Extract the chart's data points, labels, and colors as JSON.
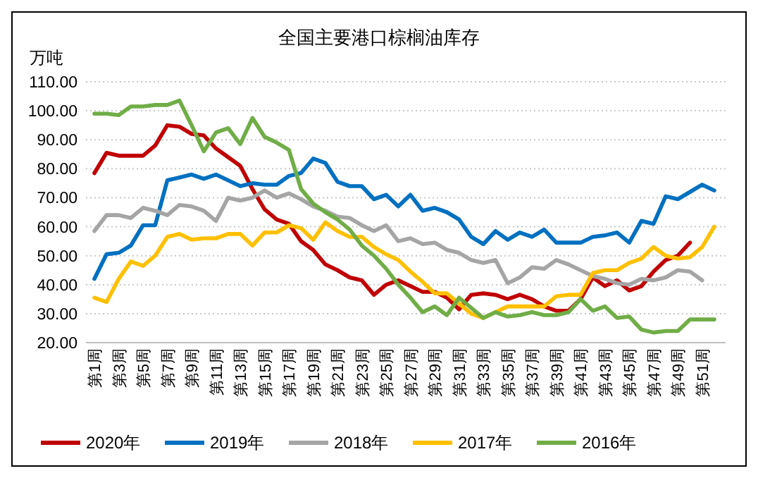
{
  "chart_data": {
    "type": "line",
    "title": "全国主要港口棕榈油库存",
    "ylabel": "万吨",
    "categories": [
      "第1周",
      null,
      "第3周",
      null,
      "第5周",
      null,
      "第7周",
      null,
      "第9周",
      null,
      "第11周",
      null,
      "第13周",
      null,
      "第15周",
      null,
      "第17周",
      null,
      "第19周",
      null,
      "第21周",
      null,
      "第23周",
      null,
      "第25周",
      null,
      "第27周",
      null,
      "第29周",
      null,
      "第31周",
      null,
      "第33周",
      null,
      "第35周",
      null,
      "第37周",
      null,
      "第39周",
      null,
      "第41周",
      null,
      "第43周",
      null,
      "第45周",
      null,
      "第47周",
      null,
      "第49周",
      null,
      "第51周",
      null
    ],
    "series": [
      {
        "name": "2020年",
        "color": "#c00000",
        "values": [
          78.5,
          85.5,
          84.5,
          84.5,
          84.5,
          88,
          95,
          94.5,
          92,
          91.5,
          87,
          84,
          81,
          73,
          66,
          62.5,
          61,
          55,
          52,
          47,
          45,
          42.5,
          41.5,
          36.5,
          40,
          41.5,
          39.5,
          37.5,
          37.5,
          35.5,
          31.5,
          36.5,
          37,
          36.5,
          35,
          36.5,
          35,
          32.5,
          31,
          31,
          35,
          42.5,
          39.5,
          41.5,
          38,
          39.5,
          44.5,
          48.5,
          50,
          54.5,
          null,
          null
        ]
      },
      {
        "name": "2019年",
        "color": "#0070c0",
        "values": [
          42,
          50.5,
          51,
          53.5,
          60.5,
          60.5,
          76,
          77,
          78,
          76.5,
          78,
          76,
          74,
          75,
          74.5,
          74.5,
          77.5,
          78.5,
          83.5,
          82,
          75.5,
          74,
          74,
          69.5,
          71,
          67,
          71,
          65.5,
          66.5,
          65,
          62.5,
          56.5,
          54,
          58.5,
          55.5,
          58,
          56.5,
          59,
          54.5,
          54.5,
          54.5,
          56.5,
          57,
          58,
          54.5,
          62,
          61,
          70.5,
          69.5,
          72,
          74.5,
          72.5
        ]
      },
      {
        "name": "2018年",
        "color": "#a5a5a5",
        "values": [
          58.5,
          64,
          64,
          63,
          66.5,
          65.5,
          64,
          67.5,
          67,
          65.5,
          62,
          70,
          69,
          70,
          72.5,
          70,
          71.5,
          69.5,
          67,
          65.5,
          63.5,
          63,
          60.5,
          58.5,
          60.5,
          55,
          56,
          54,
          54.5,
          52,
          51,
          48.5,
          47.5,
          48.5,
          40.5,
          42.5,
          46,
          45.5,
          48.5,
          47,
          45,
          43,
          42,
          40.5,
          40,
          42,
          41.5,
          42.5,
          45,
          44.5,
          41.5,
          null
        ]
      },
      {
        "name": "2017年",
        "color": "#ffc000",
        "values": [
          35.5,
          34,
          42,
          48,
          46.5,
          50,
          56.5,
          57.5,
          55.5,
          56,
          56,
          57.5,
          57.5,
          53.5,
          58,
          58,
          60.5,
          59.5,
          55.5,
          61.5,
          58.5,
          56.5,
          56.5,
          53,
          50.5,
          48.5,
          44.5,
          41,
          37,
          37,
          33.5,
          30,
          28.5,
          30.5,
          32.5,
          32.5,
          32.5,
          32.5,
          36,
          36.5,
          36.5,
          44,
          45,
          45,
          47.5,
          49,
          53,
          50,
          49,
          49.5,
          53,
          60
        ]
      },
      {
        "name": "2016年",
        "color": "#70ad47",
        "values": [
          99,
          99,
          98.5,
          101.5,
          101.5,
          102,
          102,
          103.5,
          95,
          86,
          92.5,
          94,
          88.5,
          97.5,
          91,
          89,
          86.5,
          73,
          68,
          65,
          62.5,
          59,
          53.5,
          50,
          45.5,
          40,
          35.5,
          30.5,
          32.5,
          29.5,
          35.5,
          32,
          28.5,
          30.5,
          29,
          29.5,
          30.5,
          29.5,
          29.5,
          30.5,
          35,
          31,
          32.5,
          28.5,
          29,
          24.5,
          23.5,
          24,
          24,
          28,
          28,
          28
        ]
      }
    ],
    "ylim": [
      20,
      110
    ],
    "yticks": [
      {
        "value": 20,
        "label": "20.00"
      },
      {
        "value": 30,
        "label": "30.00"
      },
      {
        "value": 40,
        "label": "40.00"
      },
      {
        "value": 50,
        "label": "50.00"
      },
      {
        "value": 60,
        "label": "60.00"
      },
      {
        "value": 70,
        "label": "70.00"
      },
      {
        "value": 80,
        "label": "80.00"
      },
      {
        "value": 90,
        "label": "90.00"
      },
      {
        "value": 100,
        "label": "100.00"
      },
      {
        "value": 110,
        "label": "110.00"
      }
    ],
    "grid": "y",
    "legend": "bottom",
    "marker": "none",
    "line_style": "solid"
  }
}
